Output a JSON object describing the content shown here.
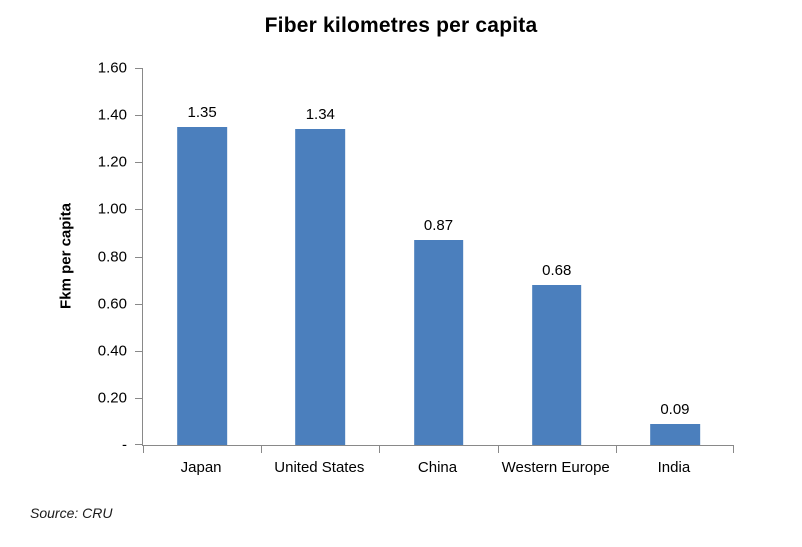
{
  "chart_data": {
    "type": "bar",
    "title": "Fiber kilometres per capita",
    "ylabel": "Fkm per capita",
    "xlabel": "",
    "categories": [
      "Japan",
      "United States",
      "China",
      "Western Europe",
      "India"
    ],
    "values": [
      1.35,
      1.34,
      0.87,
      0.68,
      0.09
    ],
    "value_labels": [
      "1.35",
      "1.34",
      "0.87",
      "0.68",
      "0.09"
    ],
    "ylim": [
      0,
      1.6
    ],
    "yticks": [
      0,
      0.2,
      0.4,
      0.6,
      0.8,
      1.0,
      1.2,
      1.4,
      1.6
    ],
    "ytick_labels": [
      "-",
      "0.20",
      "0.40",
      "0.60",
      "0.80",
      "1.00",
      "1.20",
      "1.40",
      "1.60"
    ],
    "grid": false,
    "legend": "none",
    "bar_color": "#4B7FBD",
    "axis_color": "#898989",
    "source_note": "Source: CRU"
  }
}
